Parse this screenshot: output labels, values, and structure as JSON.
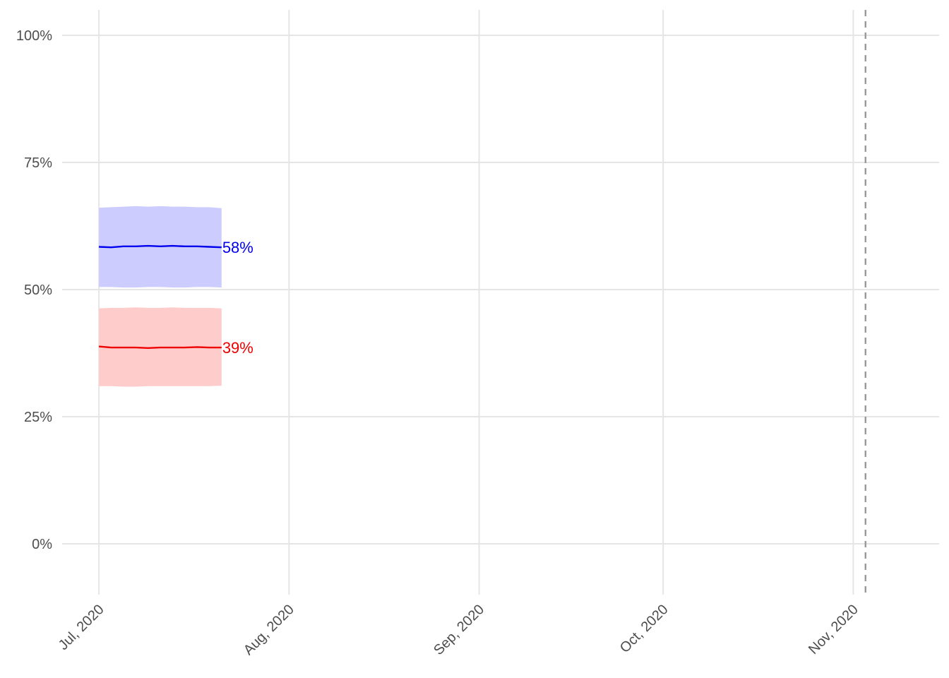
{
  "chart_data": {
    "type": "line",
    "title": "",
    "xlabel": "",
    "ylabel": "",
    "x_axis": {
      "type": "date",
      "range": [
        "2020-06-25",
        "2020-11-15"
      ],
      "ticks": [
        "2020-07-01",
        "2020-08-01",
        "2020-09-01",
        "2020-10-01",
        "2020-11-01"
      ],
      "tick_labels": [
        "Jul, 2020",
        "Aug, 2020",
        "Sep, 2020",
        "Oct, 2020",
        "Nov, 2020"
      ]
    },
    "y_axis": {
      "range": [
        -0.1,
        1.05
      ],
      "ticks": [
        0,
        0.25,
        0.5,
        0.75,
        1.0
      ],
      "tick_labels": [
        "0%",
        "25%",
        "50%",
        "75%",
        "100%"
      ]
    },
    "grid": true,
    "reference_line": {
      "x": "2020-11-03",
      "style": "dashed",
      "color": "#999999"
    },
    "x": [
      "2020-07-01",
      "2020-07-03",
      "2020-07-05",
      "2020-07-07",
      "2020-07-09",
      "2020-07-11",
      "2020-07-13",
      "2020-07-15",
      "2020-07-17",
      "2020-07-19",
      "2020-07-21"
    ],
    "series": [
      {
        "color": "#0000ee",
        "band_color": "#ccccff",
        "end_label": "58%",
        "values": [
          0.584,
          0.583,
          0.585,
          0.585,
          0.586,
          0.585,
          0.586,
          0.585,
          0.585,
          0.584,
          0.583
        ],
        "lower": [
          0.505,
          0.505,
          0.504,
          0.504,
          0.505,
          0.505,
          0.504,
          0.504,
          0.505,
          0.505,
          0.504
        ],
        "upper": [
          0.661,
          0.662,
          0.663,
          0.664,
          0.663,
          0.664,
          0.663,
          0.663,
          0.662,
          0.662,
          0.66
        ]
      },
      {
        "color": "#ee0000",
        "band_color": "#ffcccc",
        "end_label": "39%",
        "values": [
          0.388,
          0.386,
          0.386,
          0.386,
          0.385,
          0.386,
          0.386,
          0.386,
          0.387,
          0.386,
          0.386
        ],
        "lower": [
          0.31,
          0.31,
          0.309,
          0.309,
          0.31,
          0.31,
          0.31,
          0.31,
          0.31,
          0.31,
          0.311
        ],
        "upper": [
          0.463,
          0.464,
          0.464,
          0.465,
          0.464,
          0.464,
          0.465,
          0.464,
          0.464,
          0.464,
          0.463
        ]
      }
    ]
  }
}
